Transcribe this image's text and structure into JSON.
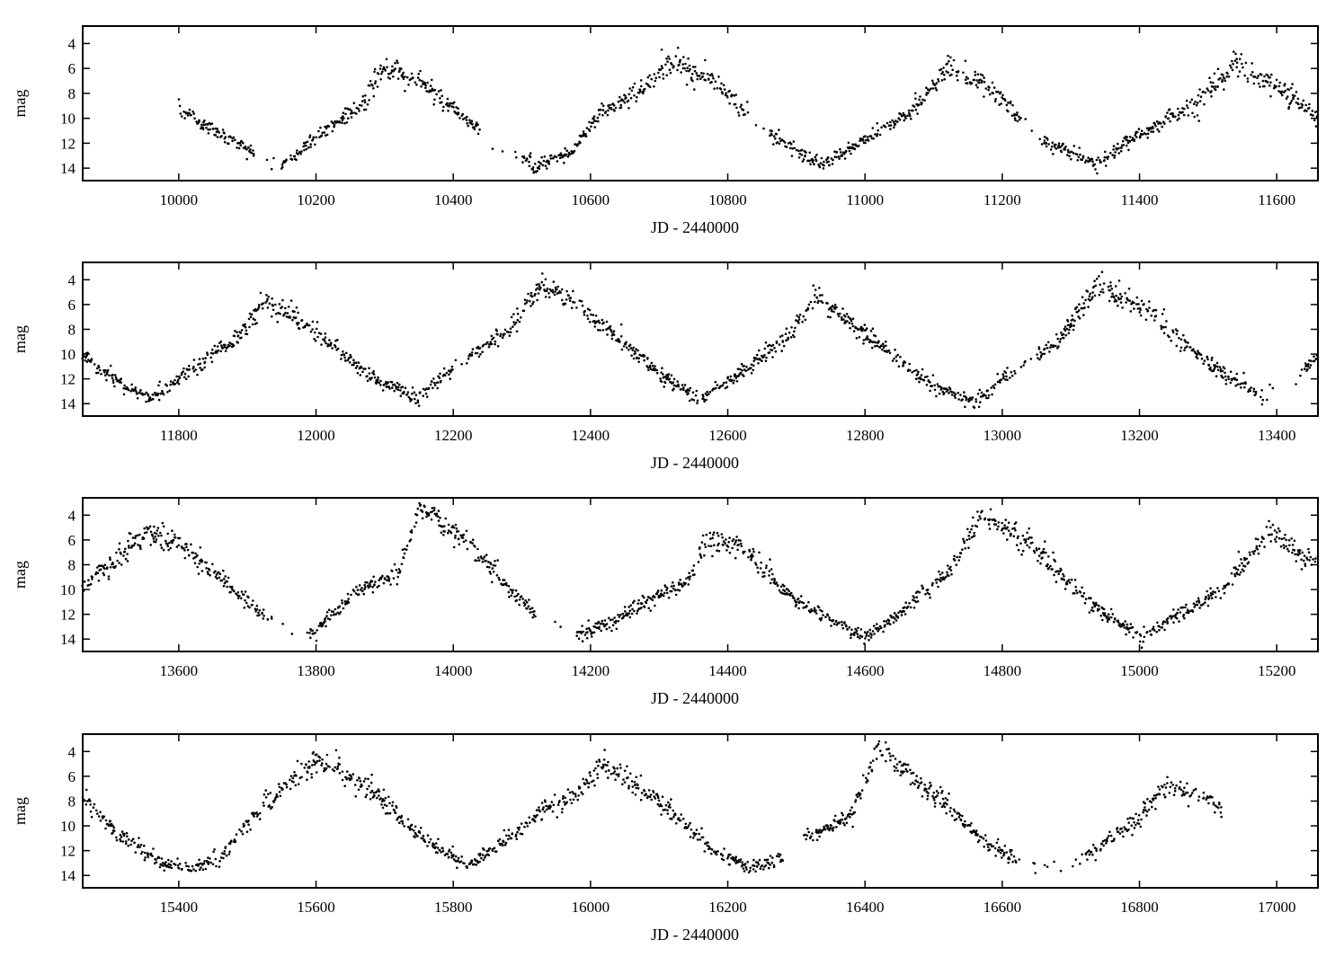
{
  "chart_data": [
    {
      "type": "scatter",
      "xlabel": "JD - 2440000",
      "ylabel": "mag",
      "xlim": [
        9860,
        11660
      ],
      "ylim": [
        15,
        2.6
      ],
      "y_inverted": true,
      "xticks": [
        10000,
        10200,
        10400,
        10600,
        10800,
        11000,
        11200,
        11400,
        11600
      ],
      "yticks": [
        4,
        6,
        8,
        10,
        12,
        14
      ],
      "curve": [
        [
          10000,
          9.3
        ],
        [
          10060,
          11.3
        ],
        [
          10150,
          13.8
        ],
        [
          10200,
          11.6
        ],
        [
          10260,
          9.3
        ],
        [
          10300,
          5.9
        ],
        [
          10360,
          7.4
        ],
        [
          10440,
          11.0
        ],
        [
          10520,
          13.8
        ],
        [
          10570,
          12.8
        ],
        [
          10620,
          9.3
        ],
        [
          10660,
          8.3
        ],
        [
          10720,
          5.5
        ],
        [
          10780,
          7.0
        ],
        [
          10860,
          11.2
        ],
        [
          10940,
          13.8
        ],
        [
          11000,
          11.6
        ],
        [
          11060,
          9.8
        ],
        [
          11120,
          6.0
        ],
        [
          11180,
          7.5
        ],
        [
          11260,
          11.9
        ],
        [
          11340,
          13.7
        ],
        [
          11400,
          11.2
        ],
        [
          11470,
          9.3
        ],
        [
          11540,
          5.7
        ],
        [
          11600,
          7.3
        ],
        [
          11660,
          10.1
        ]
      ],
      "gaps": [
        [
          10110,
          10150
        ],
        [
          10440,
          10500
        ],
        [
          10830,
          10860
        ],
        [
          11230,
          11260
        ]
      ]
    },
    {
      "type": "scatter",
      "xlabel": "JD - 2440000",
      "ylabel": "mag",
      "xlim": [
        11660,
        13460
      ],
      "ylim": [
        15,
        2.6
      ],
      "y_inverted": true,
      "xticks": [
        11800,
        12000,
        12200,
        12400,
        12600,
        12800,
        13000,
        13200,
        13400
      ],
      "yticks": [
        4,
        6,
        8,
        10,
        12,
        14
      ],
      "curve": [
        [
          11660,
          10.2
        ],
        [
          11720,
          12.6
        ],
        [
          11760,
          13.6
        ],
        [
          11820,
          11.2
        ],
        [
          11880,
          9.0
        ],
        [
          11930,
          5.6
        ],
        [
          11980,
          7.4
        ],
        [
          12080,
          11.8
        ],
        [
          12150,
          13.6
        ],
        [
          12220,
          10.2
        ],
        [
          12280,
          8.2
        ],
        [
          12330,
          4.2
        ],
        [
          12420,
          7.8
        ],
        [
          12500,
          11.6
        ],
        [
          12560,
          13.6
        ],
        [
          12620,
          11.4
        ],
        [
          12680,
          9.0
        ],
        [
          12730,
          5.3
        ],
        [
          12820,
          9.2
        ],
        [
          12900,
          12.6
        ],
        [
          12960,
          13.9
        ],
        [
          13030,
          10.8
        ],
        [
          13080,
          9.0
        ],
        [
          13140,
          4.3
        ],
        [
          13220,
          6.8
        ],
        [
          13300,
          10.8
        ],
        [
          13380,
          13.5
        ],
        [
          13420,
          12.3
        ],
        [
          13460,
          10.0
        ]
      ],
      "gaps": [
        [
          12200,
          12220
        ],
        [
          13020,
          13050
        ],
        [
          13380,
          13440
        ]
      ]
    },
    {
      "type": "scatter",
      "xlabel": "JD - 2440000",
      "ylabel": "mag",
      "xlim": [
        13460,
        15260
      ],
      "ylim": [
        15,
        2.6
      ],
      "y_inverted": true,
      "xticks": [
        13600,
        13800,
        14000,
        14200,
        14400,
        14600,
        14800,
        15000,
        15200
      ],
      "yticks": [
        4,
        6,
        8,
        10,
        12,
        14
      ],
      "curve": [
        [
          13460,
          9.8
        ],
        [
          13500,
          8.0
        ],
        [
          13550,
          5.4
        ],
        [
          13600,
          6.3
        ],
        [
          13660,
          9.0
        ],
        [
          13720,
          12.0
        ],
        [
          13760,
          13.4
        ],
        [
          13800,
          13.4
        ],
        [
          13860,
          10.0
        ],
        [
          13920,
          8.7
        ],
        [
          13950,
          3.6
        ],
        [
          14020,
          6.0
        ],
        [
          14080,
          10.0
        ],
        [
          14130,
          12.4
        ],
        [
          14180,
          13.6
        ],
        [
          14240,
          12.4
        ],
        [
          14300,
          10.4
        ],
        [
          14340,
          9.5
        ],
        [
          14370,
          6.0
        ],
        [
          14420,
          6.6
        ],
        [
          14500,
          11.0
        ],
        [
          14600,
          14.0
        ],
        [
          14660,
          11.4
        ],
        [
          14720,
          8.8
        ],
        [
          14770,
          4.2
        ],
        [
          14840,
          6.3
        ],
        [
          14920,
          10.8
        ],
        [
          15000,
          13.8
        ],
        [
          15060,
          12.0
        ],
        [
          15120,
          10.0
        ],
        [
          15150,
          8.0
        ],
        [
          15190,
          5.4
        ],
        [
          15260,
          8.2
        ]
      ],
      "gaps": [
        [
          13730,
          13790
        ],
        [
          14120,
          14180
        ]
      ]
    },
    {
      "type": "scatter",
      "xlabel": "JD - 2440000",
      "ylabel": "mag",
      "xlim": [
        15260,
        17060
      ],
      "ylim": [
        15,
        2.6
      ],
      "y_inverted": true,
      "xticks": [
        15400,
        15600,
        15800,
        16000,
        16200,
        16400,
        16600,
        16800,
        17000
      ],
      "yticks": [
        4,
        6,
        8,
        10,
        12,
        14
      ],
      "curve": [
        [
          15260,
          8.0
        ],
        [
          15320,
          11.0
        ],
        [
          15380,
          13.2
        ],
        [
          15420,
          13.4
        ],
        [
          15460,
          12.6
        ],
        [
          15520,
          8.6
        ],
        [
          15600,
          4.6
        ],
        [
          15680,
          7.0
        ],
        [
          15760,
          11.2
        ],
        [
          15820,
          13.3
        ],
        [
          15880,
          11.0
        ],
        [
          15940,
          8.4
        ],
        [
          15960,
          8.2
        ],
        [
          16020,
          5.1
        ],
        [
          16100,
          8.0
        ],
        [
          16180,
          12.0
        ],
        [
          16230,
          13.3
        ],
        [
          16280,
          12.8
        ],
        [
          16330,
          10.6
        ],
        [
          16380,
          9.2
        ],
        [
          16420,
          3.8
        ],
        [
          16500,
          7.5
        ],
        [
          16580,
          11.6
        ],
        [
          16640,
          13.3
        ],
        [
          16700,
          13.4
        ],
        [
          16760,
          10.8
        ],
        [
          16800,
          9.4
        ],
        [
          16840,
          6.8
        ],
        [
          16880,
          7.2
        ],
        [
          16920,
          8.8
        ]
      ],
      "gaps": [
        [
          16280,
          16310
        ],
        [
          16620,
          16720
        ]
      ]
    }
  ]
}
